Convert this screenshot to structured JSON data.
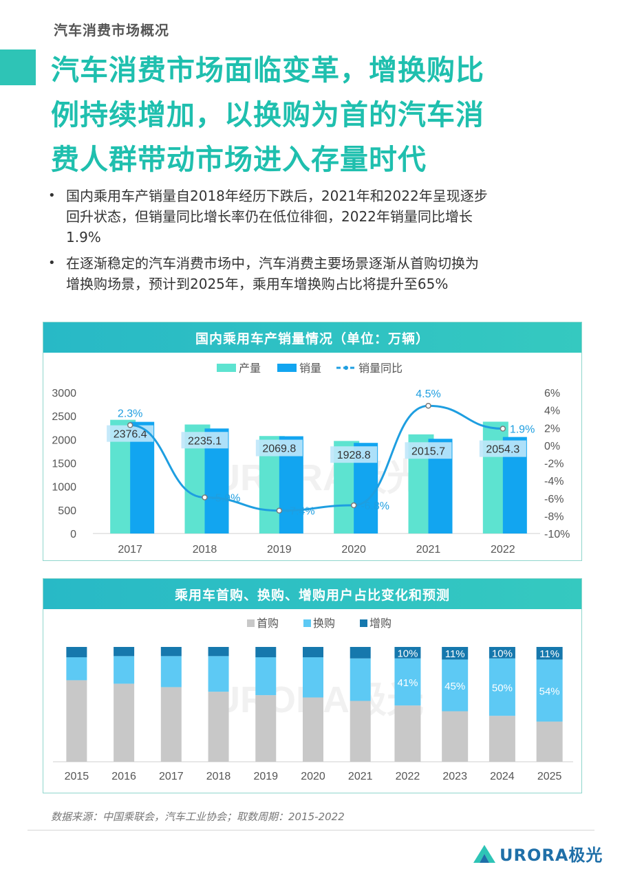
{
  "header": {
    "section": "汽车消费市场概况",
    "headline_lines": [
      "汽车消费市场面临变革，增换购比",
      "例持续增加，以换购为首的汽车消",
      "费人群带动市场进入存量时代"
    ]
  },
  "bullets": {
    "b1": [
      "国内乘用车产销量自2018年经历下跌后，2021年和2022年呈现逐步",
      "回升状态，但销量同比增长率仍在低位徘徊，2022年销量同比增长",
      "1.9%"
    ],
    "b2": [
      "在逐渐稳定的汽车消费市场中，汽车消费主要场景逐渐从首购切换为",
      "增换购场景，预计到2025年，乘用车增换购占比将提升至65%"
    ]
  },
  "chart1_title": "国内乘用车产销量情况（单位：万辆）",
  "chart2_title": "乘用车首购、换购、增购用户占比变化和预测",
  "watermark": "URORA极光",
  "footer": {
    "source": "数据来源：中国乘联会，汽车工业协会；取数周期：2015-2022",
    "brand": "URORA极光"
  },
  "colors": {
    "teal": "#5de3d0",
    "blue": "#12a5f0",
    "line": "#1e9ee0",
    "first": "#c8c8c8",
    "replace": "#5dc9f4",
    "add": "#1678ad"
  },
  "chart_data": [
    {
      "type": "bar",
      "categories": [
        "2017",
        "2018",
        "2019",
        "2020",
        "2021",
        "2022"
      ],
      "series": [
        {
          "name": "产量",
          "values": [
            2420,
            2320,
            2075,
            1970,
            2110,
            2380
          ]
        },
        {
          "name": "销量",
          "values": [
            2376.4,
            2235.1,
            2069.8,
            1928.8,
            2015.7,
            2054.3
          ]
        },
        {
          "name": "销量同比",
          "axis": "right",
          "values": [
            2.3,
            -5.9,
            -7.4,
            -6.8,
            4.5,
            1.9
          ]
        }
      ],
      "value_labels": [
        "2376.4",
        "2235.1",
        "2069.8",
        "1928.8",
        "2015.7",
        "2054.3"
      ],
      "pct_labels": [
        "2.3%",
        "-5.9%",
        "-7.4%",
        "-6.8%",
        "4.5%",
        "1.9%"
      ],
      "yticks_left": [
        "0",
        "500",
        "1000",
        "1500",
        "2000",
        "2500",
        "3000"
      ],
      "yticks_right": [
        "-10%",
        "-8%",
        "-6%",
        "-4%",
        "-2%",
        "0%",
        "2%",
        "4%",
        "6%"
      ],
      "ylim_left": [
        0,
        3000
      ],
      "ylim_right": [
        -10,
        6
      ],
      "legend_position": "top"
    },
    {
      "type": "bar",
      "stacked": true,
      "categories": [
        "2015",
        "2016",
        "2017",
        "2018",
        "2019",
        "2020",
        "2021",
        "2022",
        "2023",
        "2024",
        "2025"
      ],
      "series": [
        {
          "name": "首购",
          "values": [
            71,
            68,
            65,
            61,
            58,
            56,
            53,
            49,
            44,
            40,
            35
          ]
        },
        {
          "name": "换购",
          "values": [
            20,
            24,
            27,
            31,
            33,
            35,
            37,
            41,
            45,
            50,
            54
          ]
        },
        {
          "name": "增购",
          "values": [
            9,
            8,
            8,
            8,
            9,
            9,
            10,
            10,
            11,
            10,
            11
          ]
        }
      ],
      "labeled_from_index": 7,
      "replace_labels": [
        "41%",
        "45%",
        "50%",
        "54%"
      ],
      "add_labels": [
        "10%",
        "11%",
        "10%",
        "11%"
      ],
      "ylim": [
        0,
        100
      ],
      "legend_position": "top"
    }
  ]
}
